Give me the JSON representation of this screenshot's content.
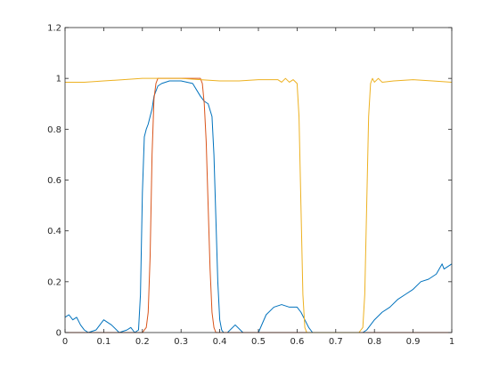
{
  "chart_data": {
    "type": "line",
    "title": "",
    "xlabel": "",
    "ylabel": "",
    "xlim": [
      0,
      1
    ],
    "ylim": [
      0,
      1.2
    ],
    "xticks": [
      "0",
      "0.1",
      "0.2",
      "0.3",
      "0.4",
      "0.5",
      "0.6",
      "0.7",
      "0.8",
      "0.9",
      "1"
    ],
    "yticks": [
      "0",
      "0.2",
      "0.4",
      "0.6",
      "0.8",
      "1",
      "1.2"
    ],
    "grid": false,
    "legend": "none",
    "series": [
      {
        "color": "#0072BD",
        "x": [
          0.0,
          0.01,
          0.02,
          0.03,
          0.04,
          0.05,
          0.06,
          0.08,
          0.1,
          0.12,
          0.14,
          0.16,
          0.17,
          0.18,
          0.19,
          0.195,
          0.2,
          0.205,
          0.21,
          0.215,
          0.22,
          0.225,
          0.23,
          0.24,
          0.25,
          0.27,
          0.3,
          0.33,
          0.35,
          0.36,
          0.37,
          0.38,
          0.385,
          0.39,
          0.395,
          0.4,
          0.405,
          0.41,
          0.42,
          0.44,
          0.46,
          0.48,
          0.5,
          0.52,
          0.54,
          0.56,
          0.58,
          0.6,
          0.61,
          0.62,
          0.63,
          0.64,
          0.645,
          0.65,
          0.66,
          0.7,
          0.75,
          0.77,
          0.78,
          0.79,
          0.8,
          0.82,
          0.84,
          0.86,
          0.88,
          0.9,
          0.92,
          0.94,
          0.96,
          0.975,
          0.98,
          0.99,
          1.0
        ],
        "y": [
          0.06,
          0.07,
          0.05,
          0.06,
          0.03,
          0.01,
          0.0,
          0.01,
          0.05,
          0.03,
          0.0,
          0.01,
          0.02,
          0.0,
          0.01,
          0.15,
          0.55,
          0.77,
          0.8,
          0.82,
          0.85,
          0.88,
          0.93,
          0.97,
          0.98,
          0.99,
          0.99,
          0.98,
          0.93,
          0.91,
          0.9,
          0.85,
          0.7,
          0.45,
          0.2,
          0.05,
          0.01,
          0.0,
          0.0,
          0.03,
          0.0,
          0.0,
          0.0,
          0.07,
          0.1,
          0.11,
          0.1,
          0.1,
          0.08,
          0.05,
          0.02,
          0.0,
          0.0,
          0.0,
          0.0,
          0.0,
          0.0,
          0.0,
          0.01,
          0.03,
          0.05,
          0.08,
          0.1,
          0.13,
          0.15,
          0.17,
          0.2,
          0.21,
          0.23,
          0.27,
          0.25,
          0.26,
          0.27
        ]
      },
      {
        "color": "#D95319",
        "x": [
          0.0,
          0.2,
          0.21,
          0.215,
          0.22,
          0.225,
          0.23,
          0.235,
          0.24,
          0.25,
          0.3,
          0.35,
          0.355,
          0.36,
          0.365,
          0.37,
          0.375,
          0.38,
          0.385,
          0.39,
          0.4,
          1.0
        ],
        "y": [
          0.0,
          0.0,
          0.02,
          0.08,
          0.3,
          0.7,
          0.92,
          0.98,
          1.0,
          1.0,
          1.0,
          1.0,
          0.98,
          0.9,
          0.75,
          0.5,
          0.25,
          0.08,
          0.02,
          0.0,
          0.0,
          0.0
        ]
      },
      {
        "color": "#EDB120",
        "x": [
          0.0,
          0.05,
          0.1,
          0.15,
          0.2,
          0.25,
          0.3,
          0.35,
          0.4,
          0.45,
          0.5,
          0.55,
          0.56,
          0.57,
          0.58,
          0.59,
          0.6,
          0.605,
          0.61,
          0.615,
          0.62,
          0.625,
          0.63,
          0.64,
          0.7,
          0.76,
          0.77,
          0.775,
          0.78,
          0.785,
          0.79,
          0.795,
          0.8,
          0.81,
          0.82,
          0.85,
          0.9,
          0.95,
          1.0
        ],
        "y": [
          0.985,
          0.985,
          0.99,
          0.995,
          1.0,
          1.0,
          1.0,
          0.995,
          0.99,
          0.99,
          0.995,
          0.995,
          0.985,
          1.0,
          0.985,
          0.995,
          0.98,
          0.85,
          0.5,
          0.15,
          0.02,
          0.0,
          0.0,
          0.0,
          0.0,
          0.0,
          0.02,
          0.15,
          0.5,
          0.85,
          0.98,
          1.0,
          0.985,
          1.0,
          0.985,
          0.99,
          0.995,
          0.99,
          0.985
        ]
      }
    ]
  }
}
